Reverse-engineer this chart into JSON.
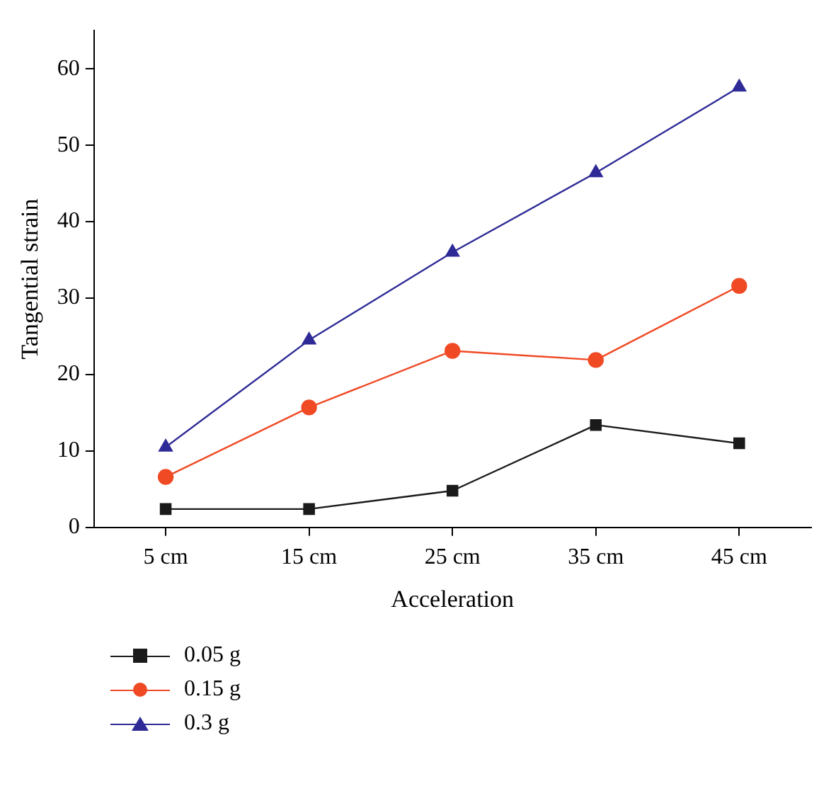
{
  "chart_data": {
    "type": "line",
    "xlabel": "Acceleration",
    "ylabel": "Tangential strain",
    "categories": [
      "5 cm",
      "15 cm",
      "25 cm",
      "35 cm",
      "45 cm"
    ],
    "series": [
      {
        "name": "0.05 g",
        "color": "#1a1a1a",
        "marker": "square",
        "values": [
          2.4,
          2.4,
          4.8,
          13.4,
          11.0
        ]
      },
      {
        "name": "0.15 g",
        "color": "#f04a25",
        "marker": "circle",
        "values": [
          6.6,
          15.7,
          23.1,
          21.9,
          31.6
        ]
      },
      {
        "name": "0.3 g",
        "color": "#2e2a96",
        "marker": "triangle",
        "values": [
          10.5,
          24.5,
          36.0,
          46.4,
          57.6
        ]
      }
    ],
    "ylim": [
      0,
      65
    ],
    "yticks": [
      0,
      10,
      20,
      30,
      40,
      50,
      60
    ],
    "grid": false,
    "legend": "bottom left",
    "line_style": "solid"
  }
}
